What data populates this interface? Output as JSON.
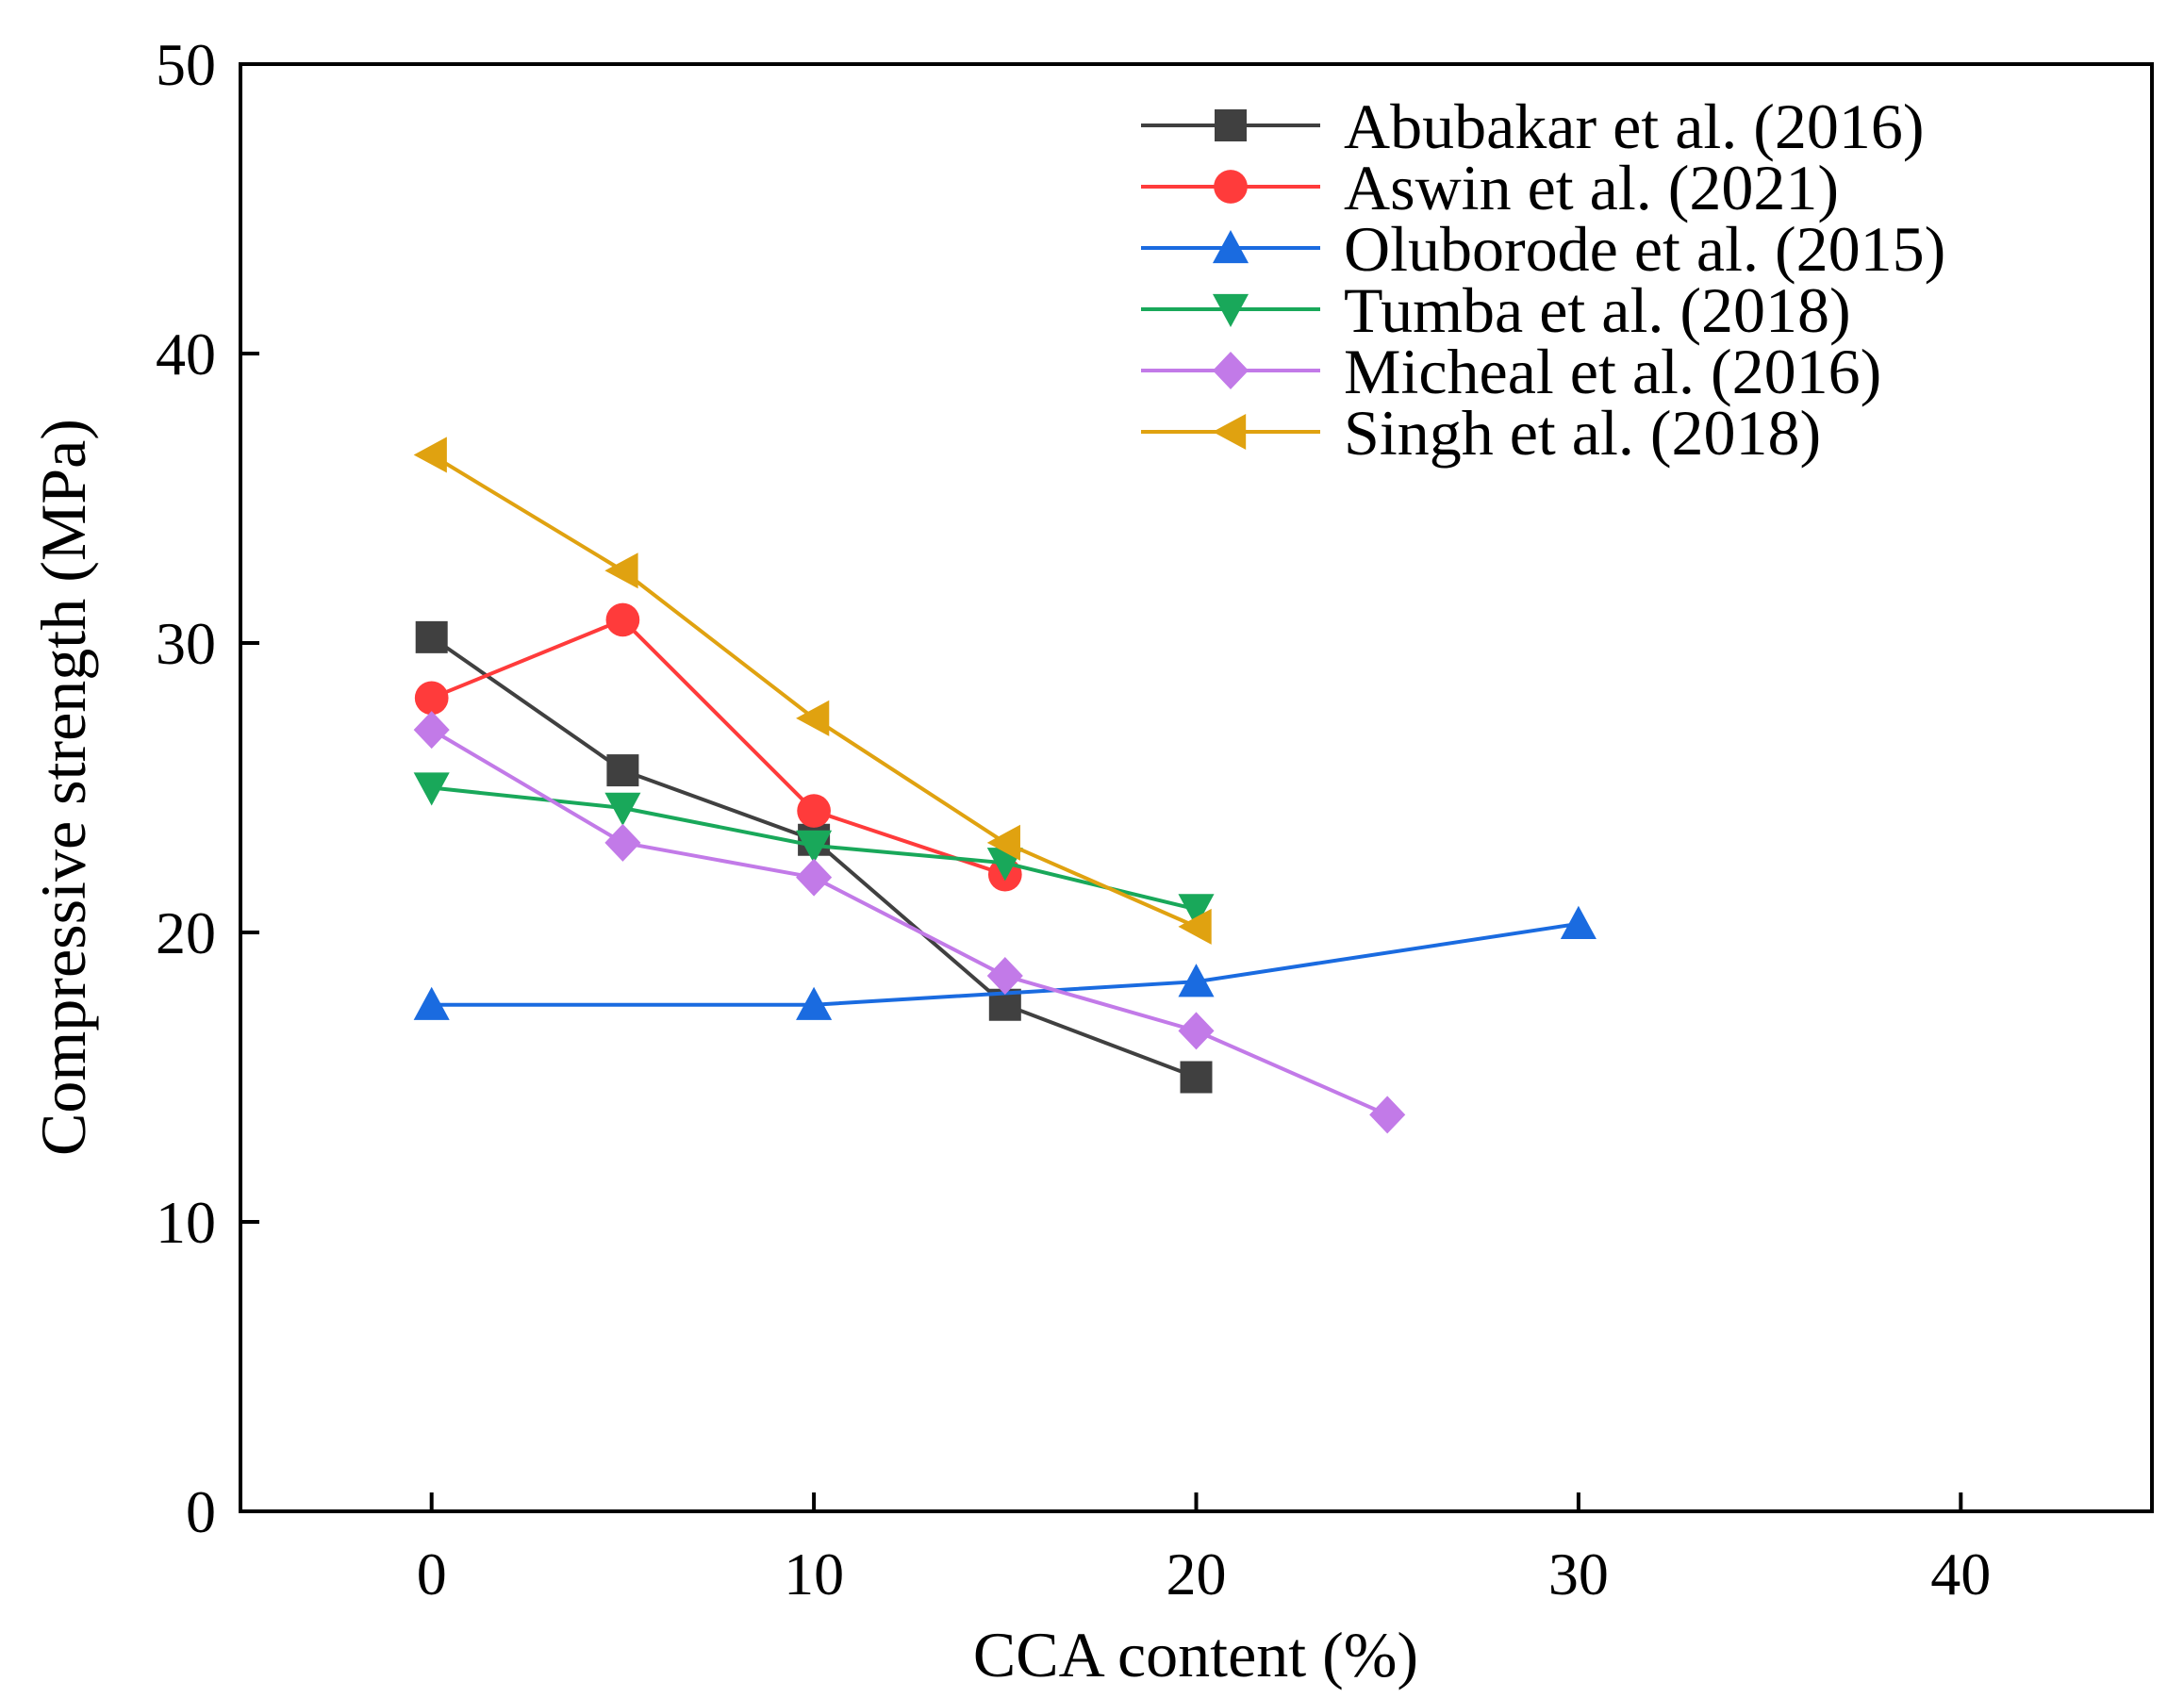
{
  "chart_data": {
    "type": "line",
    "xlabel": "CCA content (%)",
    "ylabel": "Compressive strength (MPa)",
    "xlim": [
      -5,
      45
    ],
    "ylim": [
      0,
      50
    ],
    "xticks": [
      "0",
      "10",
      "20",
      "30",
      "40"
    ],
    "yticks": [
      "0",
      "10",
      "20",
      "30",
      "40",
      "50"
    ],
    "legend_position": "top-right",
    "series": [
      {
        "name": "Abubakar et al. (2016)",
        "color": "#404040",
        "marker": "square",
        "x": [
          0,
          5,
          10,
          15,
          20
        ],
        "y": [
          30.2,
          25.6,
          23.2,
          17.5,
          15.0
        ]
      },
      {
        "name": "Aswin et al. (2021)",
        "color": "#ff3b3b",
        "marker": "circle",
        "x": [
          0,
          5,
          10,
          15
        ],
        "y": [
          28.1,
          30.8,
          24.2,
          22.0
        ]
      },
      {
        "name": "Oluborode et al. (2015)",
        "color": "#1a6be0",
        "marker": "triangle-up",
        "x": [
          0,
          10,
          20,
          30
        ],
        "y": [
          17.5,
          17.5,
          18.3,
          20.3
        ]
      },
      {
        "name": "Tumba et al. (2018)",
        "color": "#19a85a",
        "marker": "triangle-down",
        "x": [
          0,
          5,
          10,
          15,
          20
        ],
        "y": [
          25.0,
          24.3,
          23.0,
          22.4,
          20.8
        ]
      },
      {
        "name": "Micheal et al. (2016)",
        "color": "#c27ae8",
        "marker": "diamond",
        "x": [
          0,
          5,
          10,
          15,
          20,
          25
        ],
        "y": [
          27.0,
          23.1,
          21.9,
          18.5,
          16.6,
          13.7
        ]
      },
      {
        "name": "Singh et al. (2018)",
        "color": "#e0a210",
        "marker": "triangle-left",
        "x": [
          0,
          5,
          10,
          15,
          20
        ],
        "y": [
          36.5,
          32.5,
          27.4,
          23.1,
          20.2
        ]
      }
    ]
  }
}
